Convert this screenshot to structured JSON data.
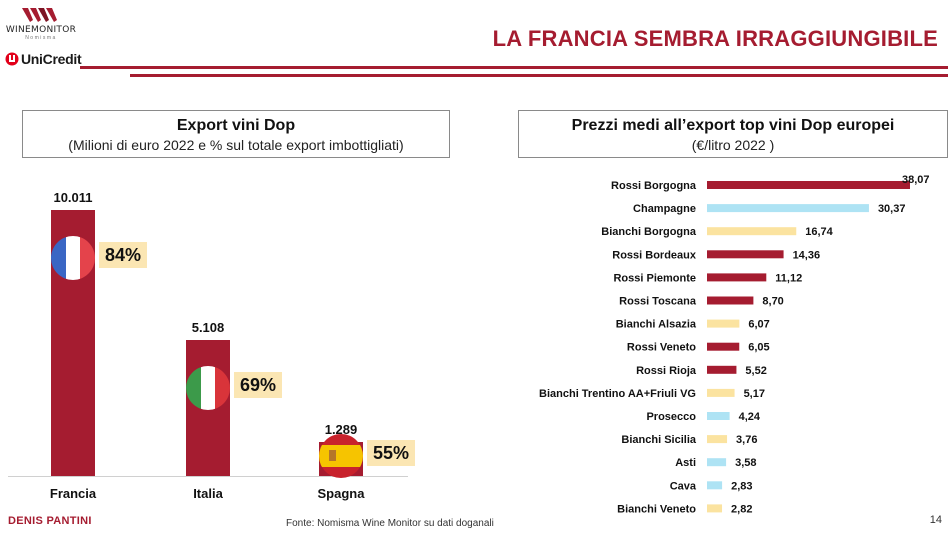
{
  "header": {
    "wm_logo_text": "WINEMONITOR",
    "wm_logo_sub": "Nomisma",
    "unicredit_logo_text": "UniCredit",
    "title": "LA FRANCIA SEMBRA IRRAGGIUNGIBILE",
    "accent_color": "#a51c30"
  },
  "left_box": {
    "title": "Export vini Dop",
    "subtitle": "(Milioni di euro 2022 e % sul totale export imbottigliati)"
  },
  "right_box": {
    "title": "Prezzi medi all’export top vini Dop europei",
    "subtitle": "(€/litro 2022 )"
  },
  "footer": {
    "author": "DENIS PANTINI",
    "source": "Fonte: Nomisma Wine Monitor su dati doganali",
    "page_number": "14"
  },
  "chart_data": [
    {
      "type": "bar",
      "title": "Export vini Dop",
      "subtitle": "(Milioni di euro 2022 e % sul totale export imbottigliati)",
      "categories": [
        "Francia",
        "Italia",
        "Spagna"
      ],
      "values": [
        10011,
        5108,
        1289
      ],
      "value_labels": [
        "10.011",
        "5.108",
        "1.289"
      ],
      "share_labels": [
        "84%",
        "69%",
        "55%"
      ],
      "flags": [
        "france-flag",
        "italy-flag",
        "spain-flag"
      ],
      "bar_color": "#a51c30",
      "badge_color": "#fbe6b3",
      "ylim": [
        0,
        10011
      ]
    },
    {
      "type": "bar",
      "orientation": "horizontal",
      "title": "Prezzi medi all’export top vini Dop europei",
      "subtitle": "(€/litro 2022 )",
      "categories": [
        "Rossi Borgogna",
        "Champagne",
        "Bianchi Borgogna",
        "Rossi Bordeaux",
        "Rossi Piemonte",
        "Rossi Toscana",
        "Bianchi Alsazia",
        "Rossi Veneto",
        "Rossi Rioja",
        "Bianchi Trentino AA+Friuli VG",
        "Prosecco",
        "Bianchi Sicilia",
        "Asti",
        "Cava",
        "Bianchi Veneto"
      ],
      "values": [
        38.07,
        30.37,
        16.74,
        14.36,
        11.12,
        8.7,
        6.07,
        6.05,
        5.52,
        5.17,
        4.24,
        3.76,
        3.58,
        2.83,
        2.82
      ],
      "value_labels": [
        "38,07",
        "30,37",
        "16,74",
        "14,36",
        "11,12",
        "8,70",
        "6,07",
        "6,05",
        "5,52",
        "5,17",
        "4,24",
        "3,76",
        "3,58",
        "2,83",
        "2,82"
      ],
      "colors": [
        "#a51c30",
        "#aee3f4",
        "#fbe3a0",
        "#a51c30",
        "#a51c30",
        "#a51c30",
        "#fbe3a0",
        "#a51c30",
        "#a51c30",
        "#fbe3a0",
        "#aee3f4",
        "#fbe3a0",
        "#aee3f4",
        "#aee3f4",
        "#fbe3a0"
      ],
      "xlim": [
        0,
        38.07
      ]
    }
  ]
}
